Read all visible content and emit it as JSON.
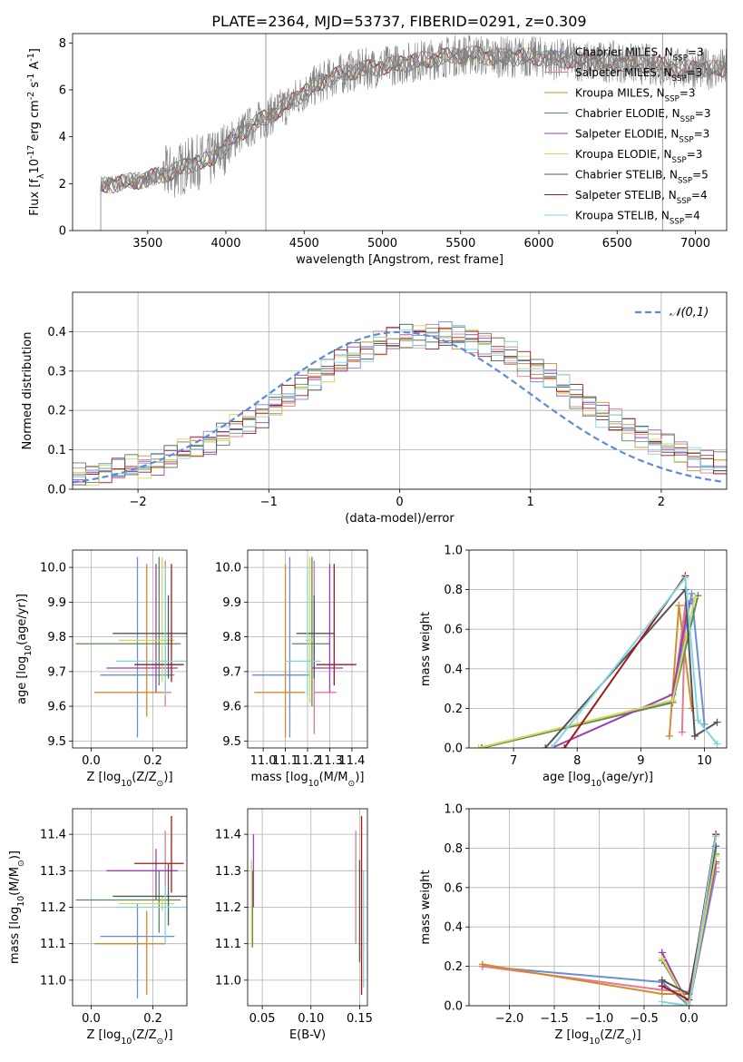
{
  "figure": {
    "title": "PLATE=2364, MJD=53737, FIBERID=0291, z=0.309"
  },
  "chart_data": [
    {
      "type": "line",
      "id": "spectrum",
      "xlabel": "wavelength [Angstrom, rest frame]",
      "ylabel": "Flux [f$_\\lambda$10$^{-17}$ erg cm$^{-2}$ s$^{-1}$ A$^{-1}$]",
      "xlim": [
        3020,
        7200
      ],
      "ylim": [
        0,
        8.4
      ],
      "xticks": [
        3500,
        4000,
        4500,
        5000,
        5500,
        6000,
        6500,
        7000
      ],
      "yticks": [
        0,
        2,
        4,
        6,
        8
      ],
      "grid": false,
      "legend_position": "top-right",
      "series": [
        {
          "name": "Chabrier MILES, N$_{SSP}$=3",
          "color": "#6b8ed6"
        },
        {
          "name": "Salpeter MILES, N$_{SSP}$=3",
          "color": "#e07b91"
        },
        {
          "name": "Kroupa MILES, N$_{SSP}$=3",
          "color": "#d68a2e"
        },
        {
          "name": "Chabrier ELODIE, N$_{SSP}$=3",
          "color": "#5a8a5a"
        },
        {
          "name": "Salpeter ELODIE, N$_{SSP}$=3",
          "color": "#9b3fb5"
        },
        {
          "name": "Kroupa ELODIE, N$_{SSP}$=3",
          "color": "#d6d65a"
        },
        {
          "name": "Chabrier STELIB, N$_{SSP}$=5",
          "color": "#555555"
        },
        {
          "name": "Salpeter STELIB, N$_{SSP}$=4",
          "color": "#a01a1a"
        },
        {
          "name": "Kroupa STELIB, N$_{SSP}$=4",
          "color": "#7fd6e0"
        }
      ],
      "data_color": "#808080",
      "continuum": {
        "x": [
          3200,
          3300,
          3400,
          3500,
          3600,
          3700,
          3800,
          3900,
          4000,
          4100,
          4200,
          4300,
          4400,
          4500,
          4600,
          4700,
          4800,
          4900,
          5000,
          5100,
          5200,
          5300,
          5400,
          5500,
          5600,
          5700,
          5800,
          5900,
          6000,
          6100,
          6200,
          6300,
          6400,
          6500,
          6600,
          6700,
          6800,
          6900,
          7000,
          7100,
          7200
        ],
        "y": [
          1.9,
          2.0,
          2.1,
          2.2,
          2.4,
          2.6,
          2.9,
          3.0,
          3.6,
          4.2,
          4.6,
          5.0,
          5.4,
          5.9,
          6.3,
          6.6,
          6.8,
          6.9,
          7.0,
          7.1,
          7.2,
          7.3,
          7.4,
          7.5,
          7.5,
          7.4,
          7.4,
          7.4,
          7.4,
          7.3,
          7.3,
          7.2,
          7.2,
          7.2,
          7.1,
          7.1,
          7.0,
          6.9,
          6.9,
          6.9,
          6.9
        ]
      }
    },
    {
      "type": "step",
      "id": "residuals",
      "xlabel": "(data-model)/error",
      "ylabel": "Normed distribution",
      "xlim": [
        -2.5,
        2.5
      ],
      "ylim": [
        0,
        0.5
      ],
      "xticks": [
        -2,
        -1,
        0,
        1,
        2
      ],
      "yticks": [
        0.0,
        0.1,
        0.2,
        0.3,
        0.4
      ],
      "grid": true,
      "legend_position": "top-right",
      "legend": "$\\mathcal{N}(0,1)$",
      "normal_color": "#5b8bd9",
      "hist": {
        "x_min": -2.5,
        "bin_width": 0.1,
        "base": [
          0.035,
          0.04,
          0.045,
          0.05,
          0.055,
          0.06,
          0.07,
          0.08,
          0.095,
          0.11,
          0.12,
          0.14,
          0.155,
          0.17,
          0.19,
          0.215,
          0.235,
          0.26,
          0.285,
          0.305,
          0.32,
          0.34,
          0.355,
          0.37,
          0.38,
          0.385,
          0.39,
          0.39,
          0.39,
          0.385,
          0.38,
          0.37,
          0.355,
          0.34,
          0.32,
          0.305,
          0.285,
          0.26,
          0.235,
          0.215,
          0.19,
          0.17,
          0.155,
          0.14,
          0.12,
          0.11,
          0.095,
          0.08,
          0.07,
          0.06
        ]
      }
    },
    {
      "type": "errorbar",
      "id": "age-vs-z",
      "xlabel": "Z [log$_{10}$(Z/Z$_\\odot$)]",
      "ylabel": "age  [log$_{10}$(age/yr)]",
      "xlim": [
        -0.06,
        0.31
      ],
      "ylim": [
        9.48,
        10.05
      ],
      "xticks": [
        0.0,
        0.2
      ],
      "yticks": [
        9.5,
        9.6,
        9.7,
        9.8,
        9.9,
        10.0
      ],
      "grid": true,
      "points": [
        {
          "x": 0.15,
          "y": 9.69,
          "xerr": [
            0.12,
            0.12
          ],
          "yerr": [
            0.18,
            0.34
          ],
          "color": "#6b8ed6"
        },
        {
          "x": 0.24,
          "y": 9.64,
          "xerr": [
            0.0,
            0.02
          ],
          "yerr": [
            0.04,
            0.38
          ],
          "color": "#e07b91"
        },
        {
          "x": 0.18,
          "y": 9.64,
          "xerr": [
            0.17,
            0.06
          ],
          "yerr": [
            0.07,
            0.37
          ],
          "color": "#d68a2e"
        },
        {
          "x": 0.22,
          "y": 9.78,
          "xerr": [
            0.27,
            0.07
          ],
          "yerr": [
            0.12,
            0.25
          ],
          "color": "#5a8a5a"
        },
        {
          "x": 0.21,
          "y": 9.71,
          "xerr": [
            0.16,
            0.07
          ],
          "yerr": [
            0.07,
            0.3
          ],
          "color": "#9b3fb5"
        },
        {
          "x": 0.23,
          "y": 9.79,
          "xerr": [
            0.14,
            0.04
          ],
          "yerr": [
            0.12,
            0.24
          ],
          "color": "#d6d65a"
        },
        {
          "x": 0.25,
          "y": 9.81,
          "xerr": [
            0.18,
            0.06
          ],
          "yerr": [
            0.13,
            0.11
          ],
          "color": "#555555"
        },
        {
          "x": 0.26,
          "y": 9.72,
          "xerr": [
            0.12,
            0.04
          ],
          "yerr": [
            0.05,
            0.29
          ],
          "color": "#a01a1a"
        },
        {
          "x": 0.24,
          "y": 9.73,
          "xerr": [
            0.16,
            0.07
          ],
          "yerr": [
            0.1,
            0.27
          ],
          "color": "#7fd6e0"
        }
      ]
    },
    {
      "type": "errorbar",
      "id": "age-vs-mass",
      "xlabel": "mass [log$_{10}$(M/M$_\\odot$)]",
      "ylabel": "",
      "xlim": [
        10.93,
        11.47
      ],
      "ylim": [
        9.48,
        10.05
      ],
      "xticks": [
        11.0,
        11.1,
        11.2,
        11.3,
        11.4
      ],
      "yticks": [
        9.5,
        9.6,
        9.7,
        9.8,
        9.9,
        10.0
      ],
      "grid": true,
      "points": [
        {
          "x": 11.12,
          "y": 9.69,
          "xerr": [
            0.17,
            0.09
          ],
          "yerr": [
            0.18,
            0.34
          ],
          "color": "#6b8ed6"
        },
        {
          "x": 11.23,
          "y": 9.64,
          "xerr": [
            0.0,
            0.1
          ],
          "yerr": [
            0.12,
            0.38
          ],
          "color": "#e07b91"
        },
        {
          "x": 11.1,
          "y": 9.64,
          "xerr": [
            0.14,
            0.09
          ],
          "yerr": [
            0.13,
            0.37
          ],
          "color": "#d68a2e"
        },
        {
          "x": 11.22,
          "y": 9.78,
          "xerr": [
            0.09,
            0.08
          ],
          "yerr": [
            0.18,
            0.25
          ],
          "color": "#5a8a5a"
        },
        {
          "x": 11.3,
          "y": 9.71,
          "xerr": [
            0.08,
            0.06
          ],
          "yerr": [
            0.07,
            0.3
          ],
          "color": "#9b3fb5"
        },
        {
          "x": 11.21,
          "y": 9.79,
          "xerr": [
            0.02,
            0.02
          ],
          "yerr": [
            0.18,
            0.24
          ],
          "color": "#d6d65a"
        },
        {
          "x": 11.23,
          "y": 9.81,
          "xerr": [
            0.08,
            0.09
          ],
          "yerr": [
            0.13,
            0.11
          ],
          "color": "#555555"
        },
        {
          "x": 11.32,
          "y": 9.72,
          "xerr": [
            0.08,
            0.1
          ],
          "yerr": [
            0.06,
            0.29
          ],
          "color": "#a01a1a"
        },
        {
          "x": 11.2,
          "y": 9.73,
          "xerr": [
            0.1,
            0.06
          ],
          "yerr": [
            0.1,
            0.27
          ],
          "color": "#7fd6e0"
        }
      ]
    },
    {
      "type": "line",
      "id": "mass-weight-vs-age",
      "xlabel": "age  [log$_{10}$(age/yr)]",
      "ylabel": "mass weight",
      "xlim": [
        6.3,
        10.35
      ],
      "ylim": [
        0,
        1
      ],
      "xticks": [
        7,
        8,
        9,
        10
      ],
      "yticks": [
        0.0,
        0.2,
        0.4,
        0.6,
        0.8,
        1.0
      ],
      "grid": true,
      "series": [
        {
          "name": "Chabrier MILES",
          "x": [
            6.5,
            9.5,
            9.8,
            10.0
          ],
          "y": [
            0.0,
            0.24,
            0.78,
            0.12
          ],
          "color": "#6b8ed6"
        },
        {
          "name": "Salpeter MILES",
          "x": [
            6.5,
            9.5,
            9.7,
            9.65
          ],
          "y": [
            0.0,
            0.23,
            0.72,
            0.08
          ],
          "color": "#e07b91"
        },
        {
          "name": "Kroupa MILES",
          "x": [
            9.45,
            9.6,
            9.8
          ],
          "y": [
            0.06,
            0.72,
            0.2
          ],
          "color": "#d68a2e"
        },
        {
          "name": "Chabrier ELODIE",
          "x": [
            6.5,
            9.5,
            9.9
          ],
          "y": [
            0.0,
            0.23,
            0.77
          ],
          "color": "#5a8a5a"
        },
        {
          "name": "Salpeter ELODIE",
          "x": [
            7.6,
            9.5,
            9.75
          ],
          "y": [
            0.0,
            0.27,
            0.73
          ],
          "color": "#9b3fb5"
        },
        {
          "name": "Kroupa ELODIE",
          "x": [
            6.45,
            9.5,
            9.85
          ],
          "y": [
            0.0,
            0.24,
            0.76
          ],
          "color": "#d6d65a"
        },
        {
          "name": "Chabrier STELIB",
          "x": [
            7.5,
            9.7,
            9.85,
            10.2
          ],
          "y": [
            0.0,
            0.8,
            0.06,
            0.13
          ],
          "color": "#555555"
        },
        {
          "name": "Salpeter STELIB",
          "x": [
            7.8,
            9.7
          ],
          "y": [
            0.0,
            0.87
          ],
          "color": "#a01a1a"
        },
        {
          "name": "Kroupa STELIB",
          "x": [
            7.6,
            9.7,
            9.9,
            10.2
          ],
          "y": [
            0.0,
            0.86,
            0.14,
            0.02
          ],
          "color": "#7fd6e0"
        }
      ]
    },
    {
      "type": "errorbar",
      "id": "mass-vs-z",
      "xlabel": "Z [log$_{10}$(Z/Z$_\\odot$)]",
      "ylabel": "mass [log$_{10}$(M/M$_\\odot$)]",
      "xlim": [
        -0.06,
        0.31
      ],
      "ylim": [
        10.93,
        11.47
      ],
      "xticks": [
        0.0,
        0.2
      ],
      "yticks": [
        11.0,
        11.1,
        11.2,
        11.3,
        11.4
      ],
      "grid": true,
      "points": [
        {
          "x": 0.15,
          "y": 11.12,
          "xerr": [
            0.12,
            0.12
          ],
          "yerr": [
            0.17,
            0.09
          ],
          "color": "#6b8ed6"
        },
        {
          "x": 0.24,
          "y": 11.23,
          "xerr": [
            0.0,
            0.0
          ],
          "yerr": [
            0.0,
            0.18
          ],
          "color": "#e07b91"
        },
        {
          "x": 0.18,
          "y": 11.1,
          "xerr": [
            0.17,
            0.06
          ],
          "yerr": [
            0.14,
            0.09
          ],
          "color": "#d68a2e"
        },
        {
          "x": 0.22,
          "y": 11.22,
          "xerr": [
            0.27,
            0.07
          ],
          "yerr": [
            0.09,
            0.08
          ],
          "color": "#5a8a5a"
        },
        {
          "x": 0.21,
          "y": 11.3,
          "xerr": [
            0.16,
            0.07
          ],
          "yerr": [
            0.08,
            0.06
          ],
          "color": "#9b3fb5"
        },
        {
          "x": 0.23,
          "y": 11.21,
          "xerr": [
            0.14,
            0.04
          ],
          "yerr": [
            0.02,
            0.02
          ],
          "color": "#d6d65a"
        },
        {
          "x": 0.25,
          "y": 11.23,
          "xerr": [
            0.18,
            0.06
          ],
          "yerr": [
            0.08,
            0.09
          ],
          "color": "#555555"
        },
        {
          "x": 0.26,
          "y": 11.32,
          "xerr": [
            0.12,
            0.04
          ],
          "yerr": [
            0.08,
            0.13
          ],
          "color": "#a01a1a"
        },
        {
          "x": 0.24,
          "y": 11.2,
          "xerr": [
            0.16,
            0.07
          ],
          "yerr": [
            0.1,
            0.06
          ],
          "color": "#7fd6e0"
        }
      ]
    },
    {
      "type": "errorbar",
      "id": "mass-vs-ebv",
      "xlabel": "E(B-V)",
      "ylabel": "",
      "xlim": [
        0.035,
        0.158
      ],
      "ylim": [
        10.93,
        11.47
      ],
      "xticks": [
        0.05,
        0.1,
        0.15
      ],
      "yticks": [
        11.0,
        11.1,
        11.2,
        11.3,
        11.4
      ],
      "grid": true,
      "points": [
        {
          "x": 0.04,
          "y": 11.22,
          "xerr": [
            0.0,
            0.0
          ],
          "yerr": [
            0.13,
            0.08
          ],
          "color": "#5a8a5a"
        },
        {
          "x": 0.041,
          "y": 11.3,
          "xerr": [
            0.0,
            0.0
          ],
          "yerr": [
            0.1,
            0.1
          ],
          "color": "#9b3fb5"
        },
        {
          "x": 0.039,
          "y": 11.21,
          "xerr": [
            0.0,
            0.0
          ],
          "yerr": [
            0.12,
            0.12
          ],
          "color": "#d6d65a"
        },
        {
          "x": 0.146,
          "y": 11.23,
          "xerr": [
            0.0,
            0.0
          ],
          "yerr": [
            0.13,
            0.18
          ],
          "color": "#e07b91"
        },
        {
          "x": 0.15,
          "y": 11.23,
          "xerr": [
            0.0,
            0.0
          ],
          "yerr": [
            0.18,
            0.1
          ],
          "color": "#555555"
        },
        {
          "x": 0.152,
          "y": 11.32,
          "xerr": [
            0.0,
            0.0
          ],
          "yerr": [
            0.36,
            0.13
          ],
          "color": "#a01a1a"
        },
        {
          "x": 0.154,
          "y": 11.2,
          "xerr": [
            0.0,
            0.0
          ],
          "yerr": [
            0.22,
            0.1
          ],
          "color": "#7fd6e0"
        }
      ]
    },
    {
      "type": "line",
      "id": "mass-weight-vs-z",
      "xlabel": "Z [log$_{10}$(Z/Z$_\\odot$)]",
      "ylabel": "mass weight",
      "xlim": [
        -2.45,
        0.42
      ],
      "ylim": [
        0,
        1
      ],
      "xticks": [
        -2.0,
        -1.5,
        -1.0,
        -0.5,
        0.0
      ],
      "yticks": [
        0.0,
        0.2,
        0.4,
        0.6,
        0.8,
        1.0
      ],
      "grid": true,
      "series": [
        {
          "name": "Chabrier MILES",
          "x": [
            -2.3,
            -0.3,
            0.0,
            0.3
          ],
          "y": [
            0.2,
            0.12,
            0.0,
            0.68
          ],
          "color": "#6b8ed6"
        },
        {
          "name": "Salpeter MILES",
          "x": [
            -2.3,
            -0.3,
            0.0,
            0.3
          ],
          "y": [
            0.2,
            0.08,
            0.07,
            0.7
          ],
          "color": "#e07b91"
        },
        {
          "name": "Kroupa MILES",
          "x": [
            -2.3,
            -0.3,
            0.0,
            0.3
          ],
          "y": [
            0.21,
            0.06,
            0.06,
            0.72
          ],
          "color": "#d68a2e"
        },
        {
          "name": "Chabrier ELODIE",
          "x": [
            -0.3,
            0.0,
            0.3
          ],
          "y": [
            0.23,
            0.0,
            0.77
          ],
          "color": "#5a8a5a"
        },
        {
          "name": "Salpeter ELODIE",
          "x": [
            -0.3,
            0.0,
            0.3
          ],
          "y": [
            0.27,
            0.0,
            0.73
          ],
          "color": "#9b3fb5"
        },
        {
          "name": "Kroupa ELODIE",
          "x": [
            -0.3,
            0.0,
            0.3
          ],
          "y": [
            0.24,
            0.0,
            0.76
          ],
          "color": "#d6d65a"
        },
        {
          "name": "Chabrier STELIB",
          "x": [
            -0.3,
            0.0,
            0.3
          ],
          "y": [
            0.13,
            0.06,
            0.81
          ],
          "color": "#555555"
        },
        {
          "name": "Salpeter STELIB",
          "x": [
            -0.3,
            0.0,
            0.3
          ],
          "y": [
            0.1,
            0.03,
            0.87
          ],
          "color": "#a01a1a"
        },
        {
          "name": "Kroupa STELIB",
          "x": [
            -0.3,
            0.0,
            0.3
          ],
          "y": [
            0.02,
            0.0,
            0.86
          ],
          "color": "#7fd6e0"
        }
      ]
    }
  ]
}
